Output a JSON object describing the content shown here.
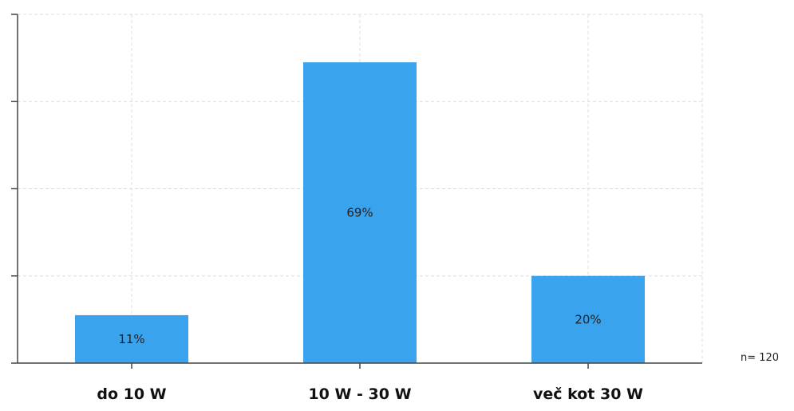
{
  "chart_data": {
    "type": "bar",
    "categories": [
      "do 10 W",
      "10 W - 30 W",
      "več kot 30 W"
    ],
    "values": [
      11,
      69,
      20
    ],
    "value_labels": [
      "11%",
      "69%",
      "20%"
    ],
    "ylim": [
      0,
      80
    ],
    "grid": true,
    "y_tick_values": [
      0,
      20,
      40,
      60,
      80
    ],
    "colors": {
      "bar": "#3aa3ee",
      "grid": "#dcdcdc",
      "axis": "#444444"
    },
    "note": "n= 120"
  }
}
